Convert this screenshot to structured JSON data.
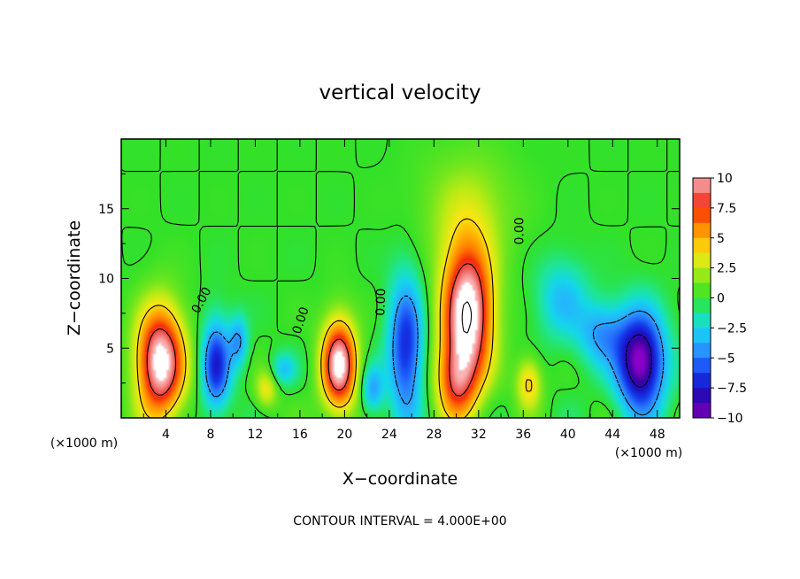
{
  "chart_data": {
    "type": "heatmap",
    "title": "vertical velocity",
    "xlabel": "X−coordinate",
    "ylabel": "Z−coordinate",
    "x_unit": "(×1000 m)",
    "footer": "CONTOUR INTERVAL = 4.000E+00",
    "xlim": [
      0,
      50
    ],
    "ylim": [
      0,
      20
    ],
    "x_ticks": [
      4,
      8,
      12,
      16,
      20,
      24,
      28,
      32,
      36,
      40,
      44,
      48
    ],
    "x_tick_labels": [
      "4",
      "8",
      "12",
      "16",
      "20",
      "24",
      "28",
      "32",
      "36",
      "40",
      "44",
      "48"
    ],
    "y_ticks": [
      5,
      10,
      15
    ],
    "y_tick_labels": [
      "5",
      "10",
      "15"
    ],
    "colorbar": {
      "min": -10,
      "max": 10,
      "tick_values": [
        10,
        7.5,
        5,
        2.5,
        0,
        -2.5,
        -5,
        -7.5,
        -10
      ],
      "tick_labels": [
        "10",
        "7.5",
        "5",
        "2.5",
        "0",
        "−2.5",
        "−5",
        "−7.5",
        "−10"
      ]
    },
    "contour_interval": 4,
    "contour_labels": [
      {
        "text": "0.00",
        "x": 7.5,
        "z": 8.3,
        "angle": -62
      },
      {
        "text": "0.00",
        "x": 16.4,
        "z": 6.9,
        "angle": -72
      },
      {
        "text": "0.00",
        "x": 23.6,
        "z": 8.3,
        "angle": -88
      },
      {
        "text": "0.00",
        "x": 36.0,
        "z": 13.4,
        "angle": -90
      }
    ],
    "features": [
      {
        "name": "updraft",
        "x": 3.5,
        "z": 4.0,
        "peak": 11.5,
        "sx": 1.5,
        "sz": 2.8
      },
      {
        "name": "updraft",
        "x": 19.5,
        "z": 3.8,
        "peak": 11.0,
        "sx": 1.1,
        "sz": 2.3
      },
      {
        "name": "updraft",
        "x": 31.0,
        "z": 7.5,
        "peak": 12.0,
        "sx": 1.6,
        "sz": 3.5
      },
      {
        "name": "updraft",
        "x": 30.0,
        "z": 2.5,
        "peak": 6.0,
        "sx": 1.3,
        "sz": 2.0
      },
      {
        "name": "downdraft",
        "x": 8.5,
        "z": 3.8,
        "peak": -7.0,
        "sx": 0.9,
        "sz": 2.3
      },
      {
        "name": "downdraft",
        "x": 10.5,
        "z": 5.5,
        "peak": -4.0,
        "sx": 0.6,
        "sz": 1.3
      },
      {
        "name": "downdraft",
        "x": 25.5,
        "z": 5.0,
        "peak": -7.0,
        "sx": 1.1,
        "sz": 3.5
      },
      {
        "name": "downdraft",
        "x": 46.5,
        "z": 4.0,
        "peak": -10.5,
        "sx": 1.5,
        "sz": 2.5
      },
      {
        "name": "downdraft",
        "x": 43.0,
        "z": 6.0,
        "peak": -4.0,
        "sx": 1.5,
        "sz": 1.6
      },
      {
        "name": "downdraft",
        "x": 39.5,
        "z": 8.5,
        "peak": -3.2,
        "sx": 1.6,
        "sz": 2.0
      },
      {
        "name": "updraft",
        "x": 31.0,
        "z": 15.0,
        "peak": 2.2,
        "sx": 3.0,
        "sz": 3.0
      },
      {
        "name": "updraft",
        "x": 13.0,
        "z": 2.0,
        "peak": 3.5,
        "sx": 0.7,
        "sz": 1.0
      },
      {
        "name": "updraft",
        "x": 36.5,
        "z": 2.5,
        "peak": 4.5,
        "sx": 0.8,
        "sz": 1.3
      },
      {
        "name": "downdraft",
        "x": 14.5,
        "z": 3.5,
        "peak": -3.0,
        "sx": 0.8,
        "sz": 0.8
      },
      {
        "name": "downdraft",
        "x": 22.5,
        "z": 2.0,
        "peak": -4.0,
        "sx": 0.7,
        "sz": 1.2
      }
    ]
  }
}
